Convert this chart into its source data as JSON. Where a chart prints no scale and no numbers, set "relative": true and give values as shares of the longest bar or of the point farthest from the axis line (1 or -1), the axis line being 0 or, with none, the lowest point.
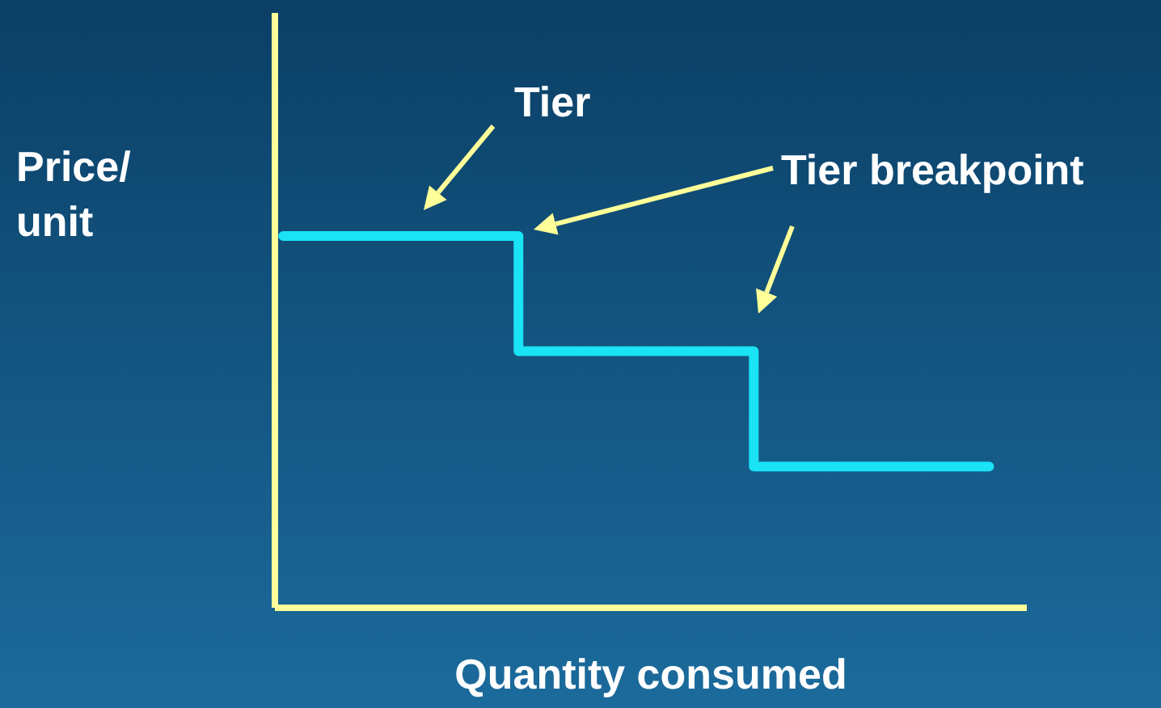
{
  "chart_data": {
    "type": "step",
    "relative": true,
    "xlabel": "Quantity consumed",
    "ylabel": "Price/ unit",
    "categories": [
      null,
      null,
      null,
      null
    ],
    "values": [
      1,
      0.69,
      0.38,
      0.38
    ],
    "color": "#19e3f5",
    "annotations": [
      "Tier",
      "Tier breakpoint"
    ]
  }
}
